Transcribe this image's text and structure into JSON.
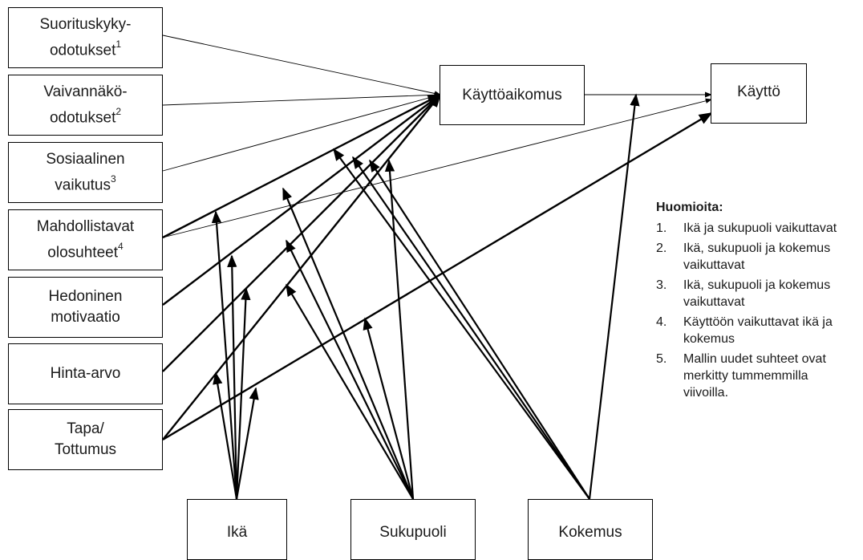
{
  "diagram": {
    "nodes": {
      "suorituskyky": {
        "text": "Suorituskyky-\nodotukset",
        "sup": "1"
      },
      "vaivannako": {
        "text": "Vaivannäkö-\nodotukset",
        "sup": "2"
      },
      "sosiaalinen": {
        "text": "Sosiaalinen\nvaikutus",
        "sup": "3"
      },
      "mahdollistavat": {
        "text": "Mahdollistavat\nolosuhteet",
        "sup": "4"
      },
      "hedoninen": {
        "text": "Hedoninen\nmotivaatio"
      },
      "hinta": {
        "text": "Hinta-arvo"
      },
      "tapa": {
        "text": "Tapa/\nTottumus"
      },
      "kayttoaikomus": {
        "text": "Käyttöaikomus"
      },
      "kaytto": {
        "text": "Käyttö"
      },
      "ika": {
        "text": "Ikä"
      },
      "sukupuoli": {
        "text": "Sukupuoli"
      },
      "kokemus": {
        "text": "Kokemus"
      }
    },
    "edges": [
      {
        "from": "suorituskyky",
        "to": "kayttoaikomus",
        "weight": "thin"
      },
      {
        "from": "vaivannako",
        "to": "kayttoaikomus",
        "weight": "thin"
      },
      {
        "from": "sosiaalinen",
        "to": "kayttoaikomus",
        "weight": "thin"
      },
      {
        "from": "mahdollistavat",
        "to": "kayttoaikomus",
        "weight": "thick"
      },
      {
        "from": "mahdollistavat",
        "to": "kaytto",
        "weight": "thin"
      },
      {
        "from": "hedoninen",
        "to": "kayttoaikomus",
        "weight": "thick"
      },
      {
        "from": "hinta",
        "to": "kayttoaikomus",
        "weight": "thick"
      },
      {
        "from": "tapa",
        "to": "kayttoaikomus",
        "weight": "thick"
      },
      {
        "from": "tapa",
        "to": "kaytto",
        "weight": "thick"
      },
      {
        "from": "kayttoaikomus",
        "to": "kaytto",
        "weight": "thin"
      },
      {
        "from": "ika",
        "target_edge": "mahdollistavat-kayttoaikomus",
        "weight": "thick"
      },
      {
        "from": "ika",
        "target_edge": "hedoninen-kayttoaikomus",
        "weight": "thick"
      },
      {
        "from": "ika",
        "target_edge": "hinta-kayttoaikomus",
        "weight": "thick"
      },
      {
        "from": "ika",
        "target_edge": "tapa-kaytto",
        "weight": "thick"
      },
      {
        "from": "ika",
        "target_edge": "tapa-kayttoaikomus",
        "weight": "thick"
      },
      {
        "from": "sukupuoli",
        "target_edge": "mahdollistavat-kayttoaikomus",
        "weight": "thick"
      },
      {
        "from": "sukupuoli",
        "target_edge": "hedoninen-kayttoaikomus",
        "weight": "thick"
      },
      {
        "from": "sukupuoli",
        "target_edge": "hinta-kayttoaikomus",
        "weight": "thick"
      },
      {
        "from": "sukupuoli",
        "target_edge": "tapa-kaytto",
        "weight": "thick"
      },
      {
        "from": "kokemus",
        "target_edge": "hedoninen-kayttoaikomus",
        "weight": "thick"
      },
      {
        "from": "kokemus",
        "target_edge": "hinta-kayttoaikomus",
        "weight": "thick"
      },
      {
        "from": "kokemus",
        "target_edge": "tapa-kayttoaikomus",
        "weight": "thick"
      },
      {
        "from": "kokemus",
        "target_edge": "kayttoaikomus-kaytto",
        "weight": "thick"
      }
    ]
  },
  "notes": {
    "title": "Huomioita:",
    "items": [
      {
        "num": "1.",
        "text": "Ikä ja sukupuoli vaikuttavat"
      },
      {
        "num": "2.",
        "text": "Ikä, sukupuoli ja kokemus vaikuttavat"
      },
      {
        "num": "3.",
        "text": "Ikä, sukupuoli ja kokemus vaikuttavat"
      },
      {
        "num": "4.",
        "text": "Käyttöön vaikuttavat ikä ja kokemus"
      },
      {
        "num": "5.",
        "text": "Mallin uudet suhteet ovat merkitty tummemmilla viivoilla."
      }
    ]
  },
  "colors": {
    "line": "#000000",
    "box_border": "#000000",
    "text": "#1a1a1a"
  }
}
